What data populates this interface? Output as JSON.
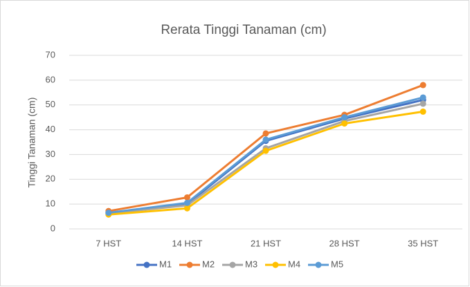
{
  "chart_data": {
    "type": "line",
    "title": "Rerata Tinggi Tanaman (cm)",
    "y_label": "Tinggi Tanaman (cm)",
    "categories": [
      "7 HST",
      "14 HST",
      "21 HST",
      "28 HST",
      "35 HST"
    ],
    "series": [
      {
        "name": "M1",
        "color": "#4472c4",
        "values": [
          6.5,
          10,
          35.5,
          44.5,
          52
        ]
      },
      {
        "name": "M2",
        "color": "#ed7d31",
        "values": [
          7.2,
          12.7,
          38.5,
          46,
          58
        ]
      },
      {
        "name": "M3",
        "color": "#a5a5a5",
        "values": [
          6.3,
          9.5,
          32.5,
          43.5,
          50.5
        ]
      },
      {
        "name": "M4",
        "color": "#ffc000",
        "values": [
          5.8,
          8.3,
          31.5,
          42.5,
          47.3
        ]
      },
      {
        "name": "M5",
        "color": "#5b9bd5",
        "values": [
          6.5,
          10.5,
          36,
          45,
          53
        ]
      }
    ],
    "ylim": [
      0,
      70
    ],
    "yticks": [
      0,
      10,
      20,
      30,
      40,
      50,
      60,
      70
    ],
    "grid": true,
    "legend": "bottom"
  }
}
